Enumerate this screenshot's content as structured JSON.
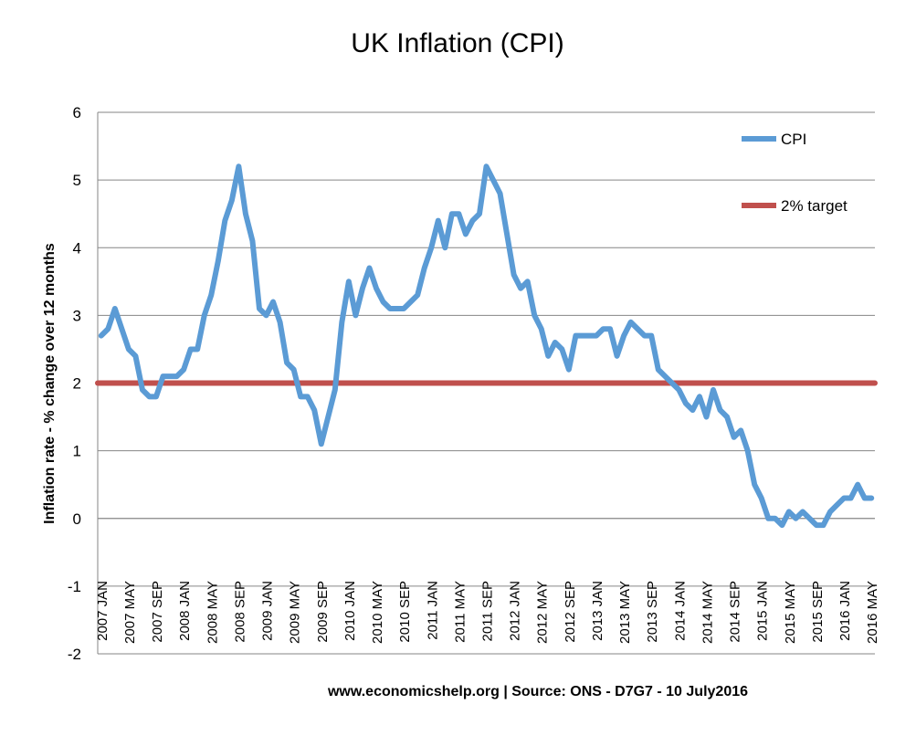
{
  "chart_data": {
    "type": "line",
    "title": "UK Inflation (CPI)",
    "ylabel": "Inflation rate  - % change over 12 months",
    "xlabel": "",
    "source": "www.economicshelp.org | Source: ONS - D7G7 - 10 July2016",
    "ylim": [
      -2,
      6
    ],
    "yticks": [
      -2,
      -1,
      0,
      1,
      2,
      3,
      4,
      5,
      6
    ],
    "grid": "horizontal",
    "legend_position": "top-right",
    "x_labels": [
      "2007 JAN",
      "2007 MAY",
      "2007 SEP",
      "2008 JAN",
      "2008 MAY",
      "2008 SEP",
      "2009 JAN",
      "2009 MAY",
      "2009 SEP",
      "2010 JAN",
      "2010 MAY",
      "2010 SEP",
      "2011 JAN",
      "2011 MAY",
      "2011 SEP",
      "2012 JAN",
      "2012 MAY",
      "2012 SEP",
      "2013 JAN",
      "2013 MAY",
      "2013 SEP",
      "2014 JAN",
      "2014 MAY",
      "2014 SEP",
      "2015 JAN",
      "2015 MAY",
      "2015 SEP",
      "2016 JAN",
      "2016 MAY"
    ],
    "series": [
      {
        "name": "CPI",
        "color": "#5b9bd5",
        "start": "2007 JAN",
        "frequency": "monthly",
        "values": [
          2.7,
          2.8,
          3.1,
          2.8,
          2.5,
          2.4,
          1.9,
          1.8,
          1.8,
          2.1,
          2.1,
          2.1,
          2.2,
          2.5,
          2.5,
          3.0,
          3.3,
          3.8,
          4.4,
          4.7,
          5.2,
          4.5,
          4.1,
          3.1,
          3.0,
          3.2,
          2.9,
          2.3,
          2.2,
          1.8,
          1.8,
          1.6,
          1.1,
          1.5,
          1.9,
          2.9,
          3.5,
          3.0,
          3.4,
          3.7,
          3.4,
          3.2,
          3.1,
          3.1,
          3.1,
          3.2,
          3.3,
          3.7,
          4.0,
          4.4,
          4.0,
          4.5,
          4.5,
          4.2,
          4.4,
          4.5,
          5.2,
          5.0,
          4.8,
          4.2,
          3.6,
          3.4,
          3.5,
          3.0,
          2.8,
          2.4,
          2.6,
          2.5,
          2.2,
          2.7,
          2.7,
          2.7,
          2.7,
          2.8,
          2.8,
          2.4,
          2.7,
          2.9,
          2.8,
          2.7,
          2.7,
          2.2,
          2.1,
          2.0,
          1.9,
          1.7,
          1.6,
          1.8,
          1.5,
          1.9,
          1.6,
          1.5,
          1.2,
          1.3,
          1.0,
          0.5,
          0.3,
          0.0,
          0.0,
          -0.1,
          0.1,
          0.0,
          0.1,
          0.0,
          -0.1,
          -0.1,
          0.1,
          0.2,
          0.3,
          0.3,
          0.5,
          0.3,
          0.3
        ]
      },
      {
        "name": "2% target",
        "color": "#c0504d",
        "constant": 2
      }
    ]
  }
}
